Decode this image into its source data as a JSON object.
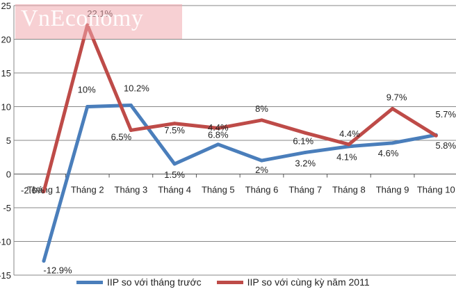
{
  "watermark": "VnEconomy",
  "colors": {
    "series1": "#4a7ebb",
    "series2": "#be4b48",
    "grid": "#878787",
    "text": "#222222"
  },
  "chart_data": {
    "type": "line",
    "categories": [
      "Tháng 1",
      "Tháng 2",
      "Tháng 3",
      "Tháng 4",
      "Tháng 5",
      "Tháng 6",
      "Tháng 7",
      "Tháng 8",
      "Tháng 9",
      "Tháng 10"
    ],
    "series": [
      {
        "name": "IIP so với tháng trước",
        "values": [
          -12.9,
          10,
          10.2,
          1.5,
          4.4,
          2,
          3.2,
          4.1,
          4.6,
          5.8
        ],
        "labels": [
          "-12.9%",
          "10%",
          "10.2%",
          "1.5%",
          "4.4%",
          "2%",
          "3.2%",
          "4.1%",
          "4.6%",
          "5.8%"
        ]
      },
      {
        "name": "IIP so với cùng kỳ năm 2011",
        "values": [
          -2.6,
          22.1,
          6.5,
          7.5,
          6.8,
          8,
          6.1,
          4.4,
          9.7,
          5.7
        ],
        "labels": [
          "-2.6%",
          "22.1%",
          "6.5%",
          "7.5%",
          "6.8%",
          "8%",
          "6.1%",
          "4.4%",
          "9.7%",
          "5.7%"
        ]
      }
    ],
    "yticks": [
      "-15",
      "-10",
      "-5",
      "0",
      "5",
      "10",
      "15",
      "20",
      "25"
    ],
    "ylim": [
      -15,
      25
    ],
    "grid": true,
    "legend": "bottom"
  }
}
